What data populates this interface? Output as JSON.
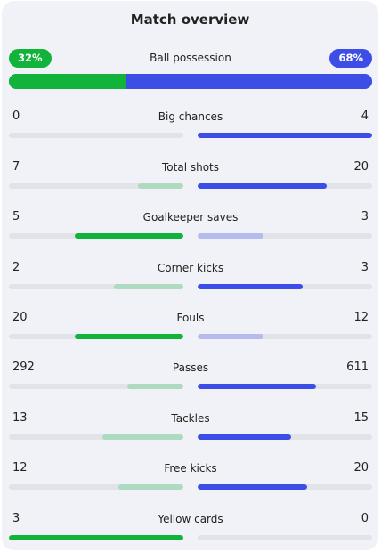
{
  "title": "Match overview",
  "possession": {
    "label": "Ball possession",
    "home": "32%",
    "away": "68%",
    "home_value": 32,
    "away_value": 68
  },
  "stats": [
    {
      "label": "Big chances",
      "home": "0",
      "away": "4",
      "home_value": 0,
      "away_value": 4
    },
    {
      "label": "Total shots",
      "home": "7",
      "away": "20",
      "home_value": 7,
      "away_value": 20
    },
    {
      "label": "Goalkeeper saves",
      "home": "5",
      "away": "3",
      "home_value": 5,
      "away_value": 3
    },
    {
      "label": "Corner kicks",
      "home": "2",
      "away": "3",
      "home_value": 2,
      "away_value": 3
    },
    {
      "label": "Fouls",
      "home": "20",
      "away": "12",
      "home_value": 20,
      "away_value": 12
    },
    {
      "label": "Passes",
      "home": "292",
      "away": "611",
      "home_value": 292,
      "away_value": 611
    },
    {
      "label": "Tackles",
      "home": "13",
      "away": "15",
      "home_value": 13,
      "away_value": 15
    },
    {
      "label": "Free kicks",
      "home": "12",
      "away": "20",
      "home_value": 12,
      "away_value": 20
    },
    {
      "label": "Yellow cards",
      "home": "3",
      "away": "0",
      "home_value": 3,
      "away_value": 0
    }
  ],
  "colors": {
    "home": "#12b33a",
    "home_light": "#aedbbf",
    "away": "#3c4ee6",
    "away_light": "#b5bbef",
    "track": "#e1e3e8"
  }
}
